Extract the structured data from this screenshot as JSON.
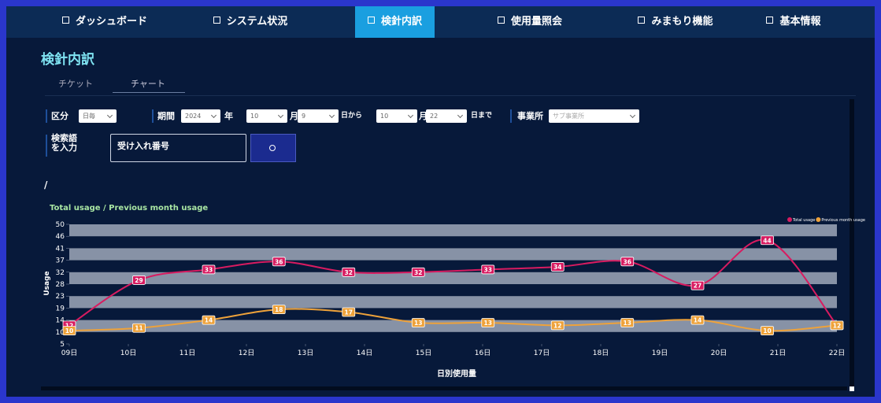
{
  "nav": {
    "tabs": [
      "ダッシュボード",
      "システム状況",
      "検針内訳",
      "使用量照会",
      "みまもり機能",
      "基本情報"
    ]
  },
  "page_title": "検針内訳",
  "subtabs": [
    "チケット",
    "チャート"
  ],
  "filters": {
    "kubun_label": "区分",
    "kubun_value": "日毎",
    "period_label": "期間",
    "year": "2024",
    "year_unit": "年",
    "from_month": "10",
    "month_unit_1": "月",
    "from_day": "9",
    "from_text": "日から",
    "to_month": "10",
    "month_unit_2": "月",
    "to_day": "22",
    "to_text": "日まで",
    "office_label": "事業所",
    "office_placeholder": "サブ事業所",
    "search_label": "検索語を入力",
    "search_value": "受け入れ番号"
  },
  "breadcrumb": "/",
  "chart_data": {
    "type": "line",
    "title": "Total usage / Previous month usage",
    "xlabel": "日別使用量",
    "ylabel": "Usage",
    "x": [
      9,
      10.18,
      11.36,
      12.55,
      13.73,
      14.91,
      16.09,
      17.27,
      18.45,
      19.64,
      20.82,
      22
    ],
    "xlim": [
      9,
      22
    ],
    "xticks": [
      {
        "value": 9,
        "label": "09日"
      },
      {
        "value": 10,
        "label": "10日"
      },
      {
        "value": 11,
        "label": "11日"
      },
      {
        "value": 12,
        "label": "12日"
      },
      {
        "value": 13,
        "label": "13日"
      },
      {
        "value": 14,
        "label": "14日"
      },
      {
        "value": 15,
        "label": "15日"
      },
      {
        "value": 16,
        "label": "16日"
      },
      {
        "value": 17,
        "label": "17日"
      },
      {
        "value": 18,
        "label": "18日"
      },
      {
        "value": 19,
        "label": "19日"
      },
      {
        "value": 20,
        "label": "20日"
      },
      {
        "value": 21,
        "label": "21日"
      },
      {
        "value": 22,
        "label": "22日"
      }
    ],
    "ylim": [
      5,
      50
    ],
    "yticks": [
      5,
      {
        "value": 9.5,
        "label": "10"
      },
      14,
      {
        "value": 18.5,
        "label": "19"
      },
      23,
      {
        "value": 27.5,
        "label": "28"
      },
      32,
      {
        "value": 36.5,
        "label": "37"
      },
      41,
      {
        "value": 45.5,
        "label": "46"
      },
      50
    ],
    "grid": true,
    "legend": "top-right",
    "series": [
      {
        "name": "Total usage",
        "color": "#d81b60",
        "values": [
          12,
          29,
          33,
          36,
          32,
          32,
          33,
          34,
          36,
          27,
          44,
          12
        ]
      },
      {
        "name": "Previous month usage",
        "color": "#eea23a",
        "values": [
          10,
          11,
          14,
          18,
          17,
          13,
          13,
          12,
          13,
          14,
          10,
          12
        ]
      }
    ]
  }
}
